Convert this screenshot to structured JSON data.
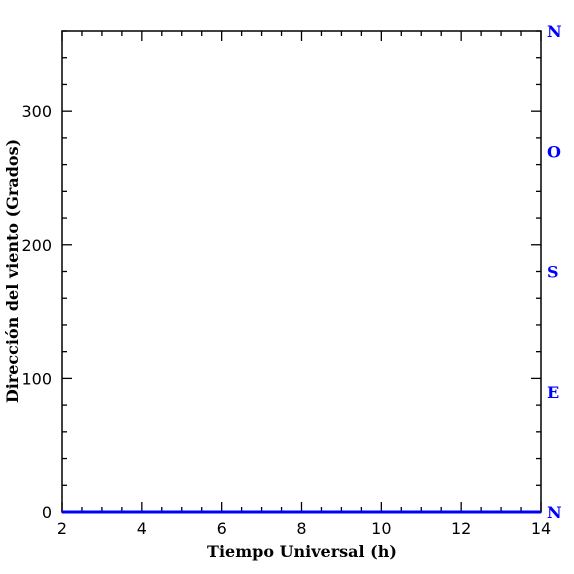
{
  "chart_data": {
    "type": "line",
    "title": "",
    "xlabel": "Tiempo Universal (h)",
    "ylabel": "Dirección del viento (Grados)",
    "xlim": [
      2,
      14
    ],
    "ylim": [
      0,
      360
    ],
    "x_ticks": [
      2,
      4,
      6,
      8,
      10,
      12,
      14
    ],
    "y_ticks": [
      0,
      100,
      200,
      300
    ],
    "x_minor_step": 0.5,
    "y_minor_step": 20,
    "grid": false,
    "right_axis": {
      "labels": [
        {
          "text": "N",
          "value": 360
        },
        {
          "text": "O",
          "value": 270
        },
        {
          "text": "S",
          "value": 180
        },
        {
          "text": "E",
          "value": 90
        },
        {
          "text": "N",
          "value": 0
        }
      ],
      "color": "#0000ff"
    },
    "series": [
      {
        "color": "#0000ff",
        "x": [
          2,
          3,
          4,
          5,
          6,
          7,
          8,
          8.4,
          9,
          10,
          11,
          12,
          13,
          14
        ],
        "y": [
          0,
          0,
          0,
          0,
          0,
          0,
          0,
          0,
          0,
          0,
          0,
          0,
          0,
          0
        ]
      }
    ]
  }
}
